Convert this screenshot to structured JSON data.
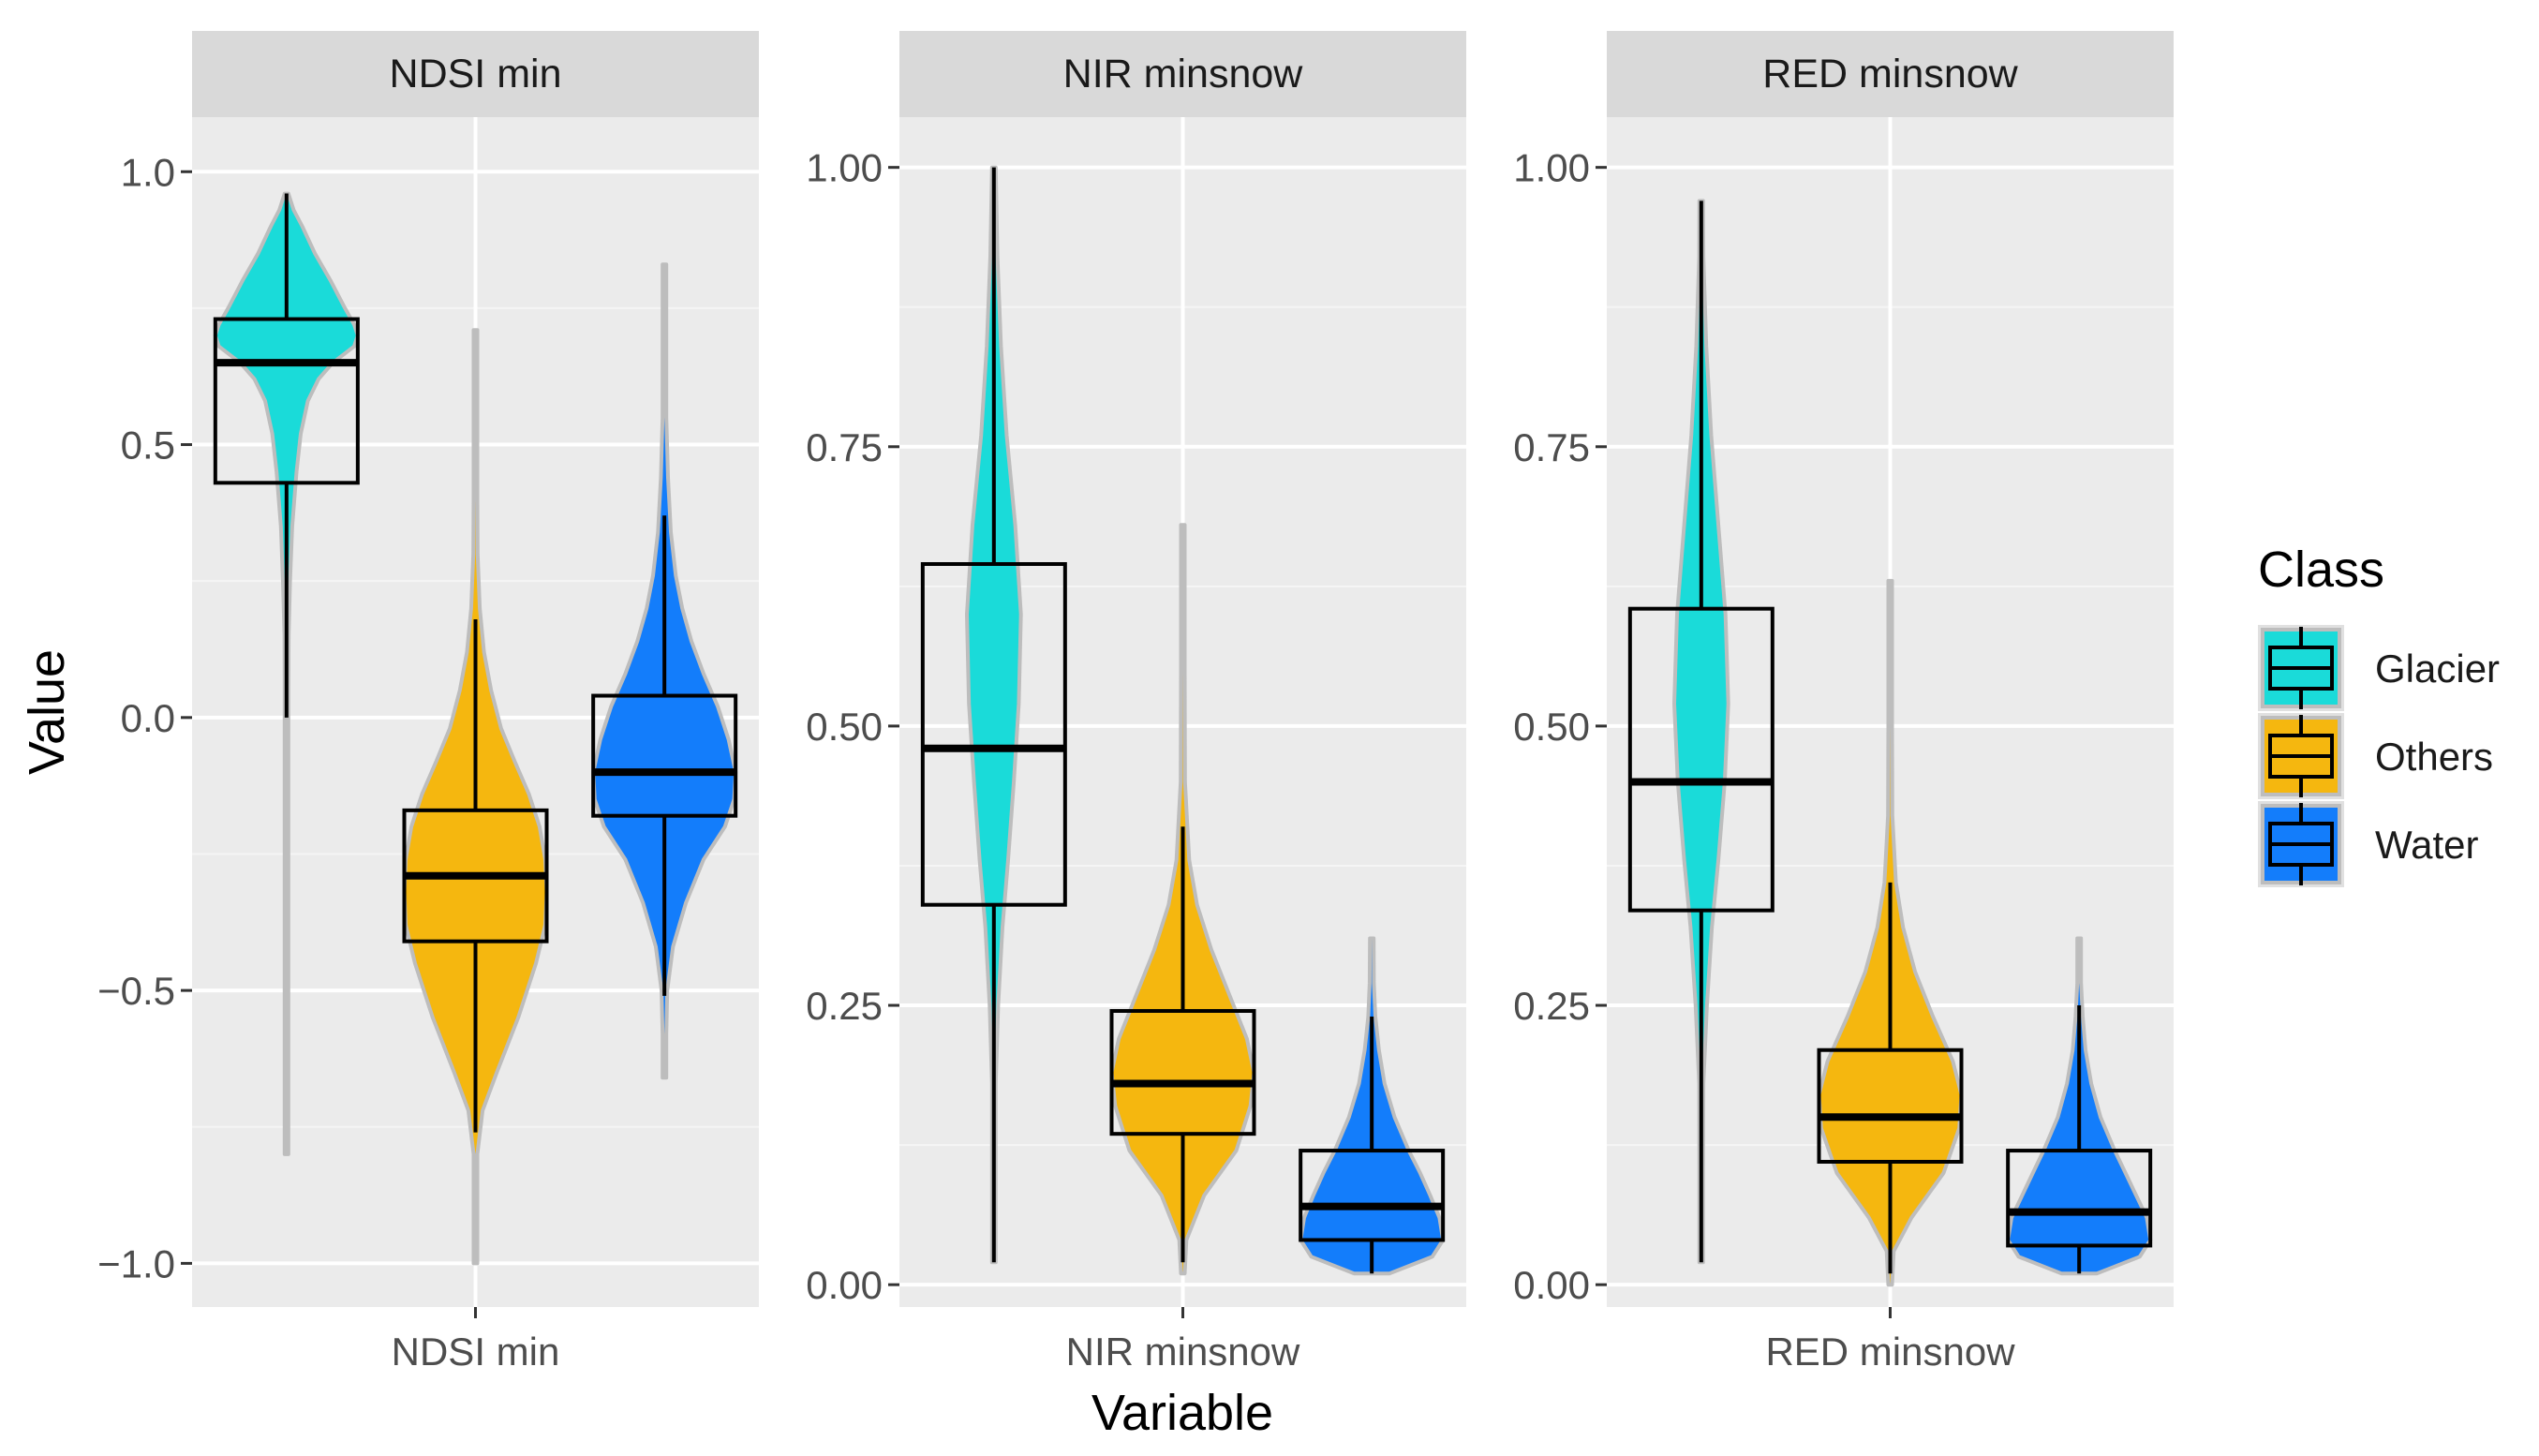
{
  "chart_data": {
    "type": "violin-boxplot",
    "xlabel": "Variable",
    "ylabel": "Value",
    "legend": {
      "title": "Class",
      "position": "right",
      "entries": [
        {
          "name": "Glacier",
          "color": "#1adbd9"
        },
        {
          "name": "Others",
          "color": "#f5b70f"
        },
        {
          "name": "Water",
          "color": "#137dfb"
        }
      ]
    },
    "panel_background": "#ebebeb",
    "strip_background": "#d9d9d9",
    "grid": true,
    "panels": [
      {
        "strip": "NDSI min",
        "x_category": "NDSI min",
        "ylim": [
          -1.08,
          1.1
        ],
        "yticks": [
          -1.0,
          -0.5,
          0.0,
          0.5,
          1.0
        ],
        "yticklabels": [
          "−1.0",
          "−0.5",
          "0.0",
          "0.5",
          "1.0"
        ],
        "series": [
          {
            "class": "Glacier",
            "violin_min": -0.8,
            "violin_max": 0.96,
            "box": {
              "whisker_low": 0.0,
              "q1": 0.43,
              "median": 0.65,
              "q3": 0.73,
              "whisker_high": 0.96
            },
            "density": [
              [
                -0.8,
                0.002
              ],
              [
                -0.6,
                0.002
              ],
              [
                -0.4,
                0.003
              ],
              [
                -0.2,
                0.006
              ],
              [
                -0.05,
                0.01
              ],
              [
                0.05,
                0.02
              ],
              [
                0.15,
                0.03
              ],
              [
                0.25,
                0.05
              ],
              [
                0.35,
                0.08
              ],
              [
                0.45,
                0.14
              ],
              [
                0.52,
                0.2
              ],
              [
                0.58,
                0.3
              ],
              [
                0.62,
                0.45
              ],
              [
                0.65,
                0.65
              ],
              [
                0.68,
                0.95
              ],
              [
                0.7,
                1.0
              ],
              [
                0.72,
                0.95
              ],
              [
                0.75,
                0.82
              ],
              [
                0.8,
                0.62
              ],
              [
                0.85,
                0.4
              ],
              [
                0.9,
                0.22
              ],
              [
                0.93,
                0.1
              ],
              [
                0.96,
                0.02
              ]
            ]
          },
          {
            "class": "Others",
            "violin_min": -1.0,
            "violin_max": 0.71,
            "box": {
              "whisker_low": -0.76,
              "q1": -0.41,
              "median": -0.29,
              "q3": -0.17,
              "whisker_high": 0.18
            },
            "density": [
              [
                -1.0,
                0.003
              ],
              [
                -0.9,
                0.006
              ],
              [
                -0.8,
                0.02
              ],
              [
                -0.72,
                0.1
              ],
              [
                -0.65,
                0.3
              ],
              [
                -0.55,
                0.6
              ],
              [
                -0.45,
                0.85
              ],
              [
                -0.38,
                0.98
              ],
              [
                -0.32,
                1.0
              ],
              [
                -0.26,
                0.98
              ],
              [
                -0.2,
                0.9
              ],
              [
                -0.14,
                0.75
              ],
              [
                -0.08,
                0.55
              ],
              [
                -0.02,
                0.36
              ],
              [
                0.05,
                0.22
              ],
              [
                0.12,
                0.12
              ],
              [
                0.2,
                0.06
              ],
              [
                0.3,
                0.03
              ],
              [
                0.4,
                0.012
              ],
              [
                0.55,
                0.006
              ],
              [
                0.71,
                0.003
              ]
            ]
          },
          {
            "class": "Water",
            "violin_min": -0.66,
            "violin_max": 0.83,
            "box": {
              "whisker_low": -0.51,
              "q1": -0.18,
              "median": -0.1,
              "q3": 0.04,
              "whisker_high": 0.37
            },
            "density": [
              [
                -0.66,
                0.004
              ],
              [
                -0.58,
                0.015
              ],
              [
                -0.5,
                0.04
              ],
              [
                -0.42,
                0.12
              ],
              [
                -0.34,
                0.3
              ],
              [
                -0.26,
                0.55
              ],
              [
                -0.2,
                0.85
              ],
              [
                -0.15,
                0.98
              ],
              [
                -0.1,
                1.0
              ],
              [
                -0.04,
                0.9
              ],
              [
                0.02,
                0.75
              ],
              [
                0.08,
                0.55
              ],
              [
                0.14,
                0.38
              ],
              [
                0.2,
                0.25
              ],
              [
                0.26,
                0.16
              ],
              [
                0.34,
                0.09
              ],
              [
                0.44,
                0.05
              ],
              [
                0.55,
                0.025
              ],
              [
                0.7,
                0.01
              ],
              [
                0.83,
                0.004
              ]
            ]
          }
        ]
      },
      {
        "strip": "NIR minsnow",
        "x_category": "NIR minsnow",
        "ylim": [
          -0.02,
          1.045
        ],
        "yticks": [
          0.0,
          0.25,
          0.5,
          0.75,
          1.0
        ],
        "yticklabels": [
          "0.00",
          "0.25",
          "0.50",
          "0.75",
          "1.00"
        ],
        "series": [
          {
            "class": "Glacier",
            "violin_min": 0.02,
            "violin_max": 1.0,
            "box": {
              "whisker_low": 0.02,
              "q1": 0.34,
              "median": 0.48,
              "q3": 0.645,
              "whisker_high": 1.0
            },
            "density": [
              [
                0.02,
                0.003
              ],
              [
                0.1,
                0.008
              ],
              [
                0.18,
                0.02
              ],
              [
                0.25,
                0.06
              ],
              [
                0.32,
                0.12
              ],
              [
                0.38,
                0.2
              ],
              [
                0.45,
                0.28
              ],
              [
                0.52,
                0.35
              ],
              [
                0.6,
                0.38
              ],
              [
                0.68,
                0.3
              ],
              [
                0.76,
                0.18
              ],
              [
                0.84,
                0.1
              ],
              [
                0.92,
                0.05
              ],
              [
                1.0,
                0.01
              ]
            ]
          },
          {
            "class": "Others",
            "violin_min": 0.01,
            "violin_max": 0.68,
            "box": {
              "whisker_low": 0.02,
              "q1": 0.135,
              "median": 0.18,
              "q3": 0.245,
              "whisker_high": 0.41
            },
            "density": [
              [
                0.01,
                0.01
              ],
              [
                0.04,
                0.05
              ],
              [
                0.08,
                0.3
              ],
              [
                0.12,
                0.75
              ],
              [
                0.16,
                0.95
              ],
              [
                0.19,
                1.0
              ],
              [
                0.22,
                0.9
              ],
              [
                0.26,
                0.65
              ],
              [
                0.3,
                0.4
              ],
              [
                0.34,
                0.2
              ],
              [
                0.38,
                0.09
              ],
              [
                0.45,
                0.03
              ],
              [
                0.55,
                0.01
              ],
              [
                0.68,
                0.004
              ]
            ]
          },
          {
            "class": "Water",
            "violin_min": 0.01,
            "violin_max": 0.31,
            "box": {
              "whisker_low": 0.01,
              "q1": 0.04,
              "median": 0.07,
              "q3": 0.12,
              "whisker_high": 0.24
            },
            "density": [
              [
                0.01,
                0.25
              ],
              [
                0.025,
                0.85
              ],
              [
                0.04,
                1.0
              ],
              [
                0.06,
                0.95
              ],
              [
                0.08,
                0.82
              ],
              [
                0.1,
                0.68
              ],
              [
                0.12,
                0.52
              ],
              [
                0.15,
                0.32
              ],
              [
                0.18,
                0.18
              ],
              [
                0.21,
                0.1
              ],
              [
                0.24,
                0.05
              ],
              [
                0.27,
                0.03
              ],
              [
                0.31,
                0.01
              ]
            ]
          }
        ]
      },
      {
        "strip": "RED minsnow",
        "x_category": "RED minsnow",
        "ylim": [
          -0.02,
          1.045
        ],
        "yticks": [
          0.0,
          0.25,
          0.5,
          0.75,
          1.0
        ],
        "yticklabels": [
          "0.00",
          "0.25",
          "0.50",
          "0.75",
          "1.00"
        ],
        "series": [
          {
            "class": "Glacier",
            "violin_min": 0.02,
            "violin_max": 0.97,
            "box": {
              "whisker_low": 0.02,
              "q1": 0.335,
              "median": 0.45,
              "q3": 0.605,
              "whisker_high": 0.97
            },
            "density": [
              [
                0.02,
                0.003
              ],
              [
                0.1,
                0.008
              ],
              [
                0.18,
                0.03
              ],
              [
                0.25,
                0.08
              ],
              [
                0.32,
                0.15
              ],
              [
                0.38,
                0.24
              ],
              [
                0.45,
                0.33
              ],
              [
                0.52,
                0.38
              ],
              [
                0.6,
                0.34
              ],
              [
                0.68,
                0.24
              ],
              [
                0.76,
                0.14
              ],
              [
                0.84,
                0.07
              ],
              [
                0.92,
                0.03
              ],
              [
                0.97,
                0.01
              ]
            ]
          },
          {
            "class": "Others",
            "violin_min": 0.0,
            "violin_max": 0.63,
            "box": {
              "whisker_low": 0.01,
              "q1": 0.11,
              "median": 0.15,
              "q3": 0.21,
              "whisker_high": 0.36
            },
            "density": [
              [
                0.0,
                0.01
              ],
              [
                0.03,
                0.05
              ],
              [
                0.06,
                0.3
              ],
              [
                0.1,
                0.75
              ],
              [
                0.14,
                0.97
              ],
              [
                0.17,
                1.0
              ],
              [
                0.2,
                0.88
              ],
              [
                0.24,
                0.6
              ],
              [
                0.28,
                0.35
              ],
              [
                0.32,
                0.18
              ],
              [
                0.36,
                0.08
              ],
              [
                0.42,
                0.03
              ],
              [
                0.5,
                0.012
              ],
              [
                0.63,
                0.004
              ]
            ]
          },
          {
            "class": "Water",
            "violin_min": 0.01,
            "violin_max": 0.31,
            "box": {
              "whisker_low": 0.01,
              "q1": 0.035,
              "median": 0.065,
              "q3": 0.12,
              "whisker_high": 0.25
            },
            "density": [
              [
                0.01,
                0.25
              ],
              [
                0.025,
                0.85
              ],
              [
                0.04,
                1.0
              ],
              [
                0.06,
                0.95
              ],
              [
                0.08,
                0.8
              ],
              [
                0.1,
                0.65
              ],
              [
                0.12,
                0.5
              ],
              [
                0.15,
                0.3
              ],
              [
                0.18,
                0.17
              ],
              [
                0.21,
                0.09
              ],
              [
                0.24,
                0.05
              ],
              [
                0.27,
                0.025
              ],
              [
                0.31,
                0.01
              ]
            ]
          }
        ]
      }
    ]
  }
}
